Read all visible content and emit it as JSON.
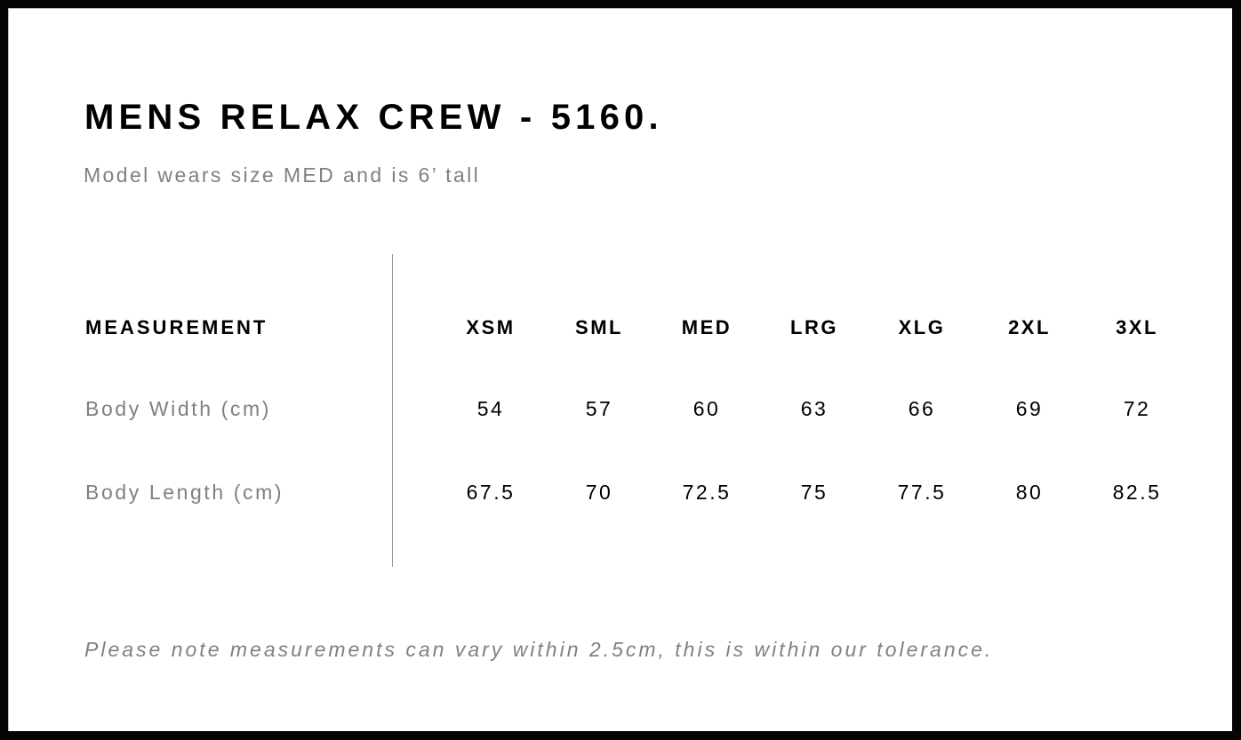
{
  "title": "MENS RELAX CREW - 5160.",
  "subtitle": "Model wears size MED and is 6’ tall",
  "table": {
    "header_label": "MEASUREMENT",
    "sizes": [
      "XSM",
      "SML",
      "MED",
      "LRG",
      "XLG",
      "2XL",
      "3XL"
    ],
    "rows": [
      {
        "label": "Body Width (cm)",
        "values": [
          "54",
          "57",
          "60",
          "63",
          "66",
          "69",
          "72"
        ]
      },
      {
        "label": "Body Length (cm)",
        "values": [
          "67.5",
          "70",
          "72.5",
          "75",
          "77.5",
          "80",
          "82.5"
        ]
      }
    ]
  },
  "note": "Please note measurements can vary within 2.5cm, this is within our tolerance."
}
